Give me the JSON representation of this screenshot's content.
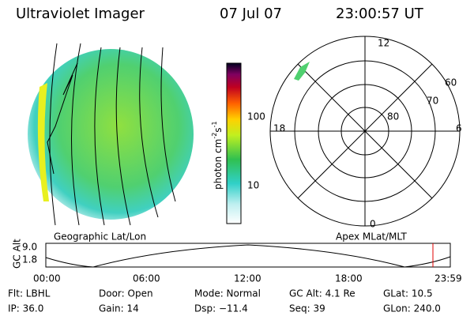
{
  "header": {
    "instrument": "Ultraviolet Imager",
    "date": "07 Jul 07",
    "time": "23:00:57 UT"
  },
  "colorbar": {
    "label_main": "photon cm",
    "label_exp1": "-2",
    "label_unit2": "s",
    "label_exp2": "-1",
    "tick_high": "100",
    "tick_low": "10"
  },
  "polar": {
    "mlt_top": "12",
    "mlt_bottom": "0",
    "mlt_left": "18",
    "mlt_right": "6",
    "lat_60": "60",
    "lat_70": "70",
    "lat_80": "80"
  },
  "image_captions": {
    "left": "Geographic Lat/Lon",
    "right": "Apex MLat/MLT"
  },
  "altitude_plot": {
    "ylabel": "GC Alt",
    "y_high": "9.0",
    "y_low": "1.8",
    "xticks": [
      "00:00",
      "06:00",
      "12:00",
      "18:00",
      "23:59"
    ]
  },
  "footer": {
    "rows": [
      [
        "Flt: LBHL",
        "Door: Open",
        "Mode: Normal",
        "GC Alt: 4.1 Re",
        "GLat: 10.5"
      ],
      [
        "IP: 36.0",
        "Gain: 14",
        "Dsp: −11.4",
        "Seq: 39",
        "GLon: 240.0"
      ]
    ]
  }
}
